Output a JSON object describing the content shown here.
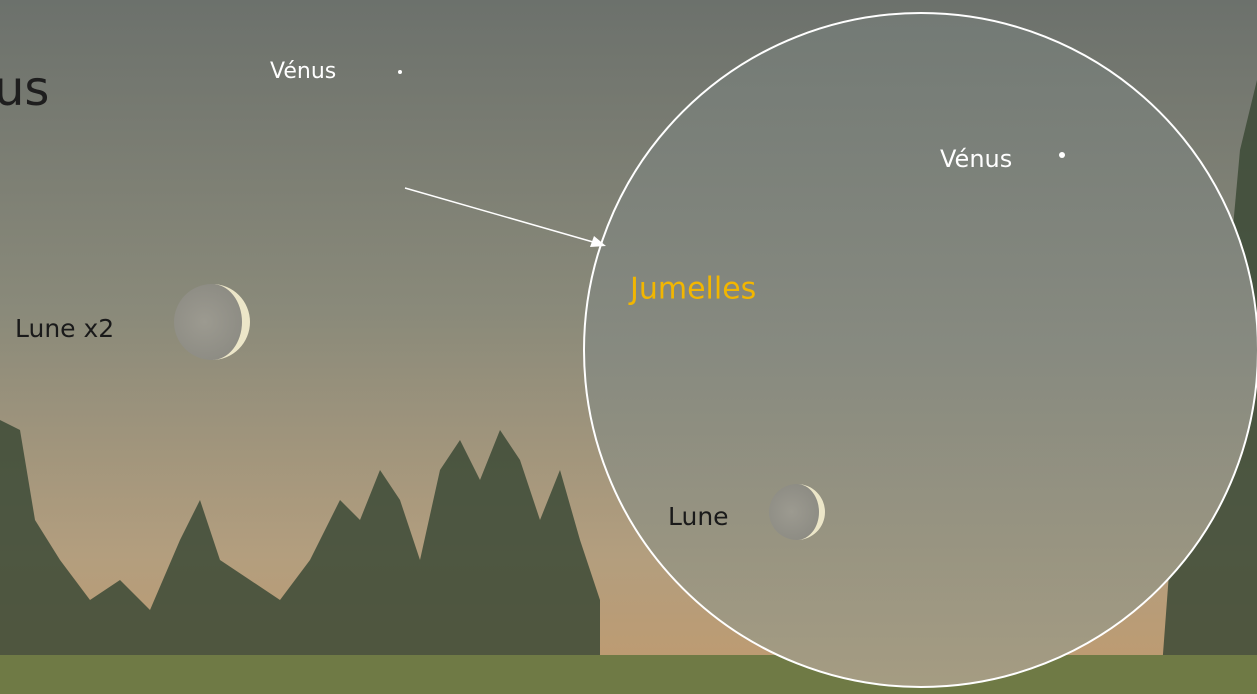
{
  "main_view": {
    "title": "us",
    "venus_label": "Vénus",
    "moon_label": "Lune x2"
  },
  "binocular_view": {
    "title": "Jumelles",
    "venus_label": "Vénus",
    "moon_label": "Lune"
  }
}
